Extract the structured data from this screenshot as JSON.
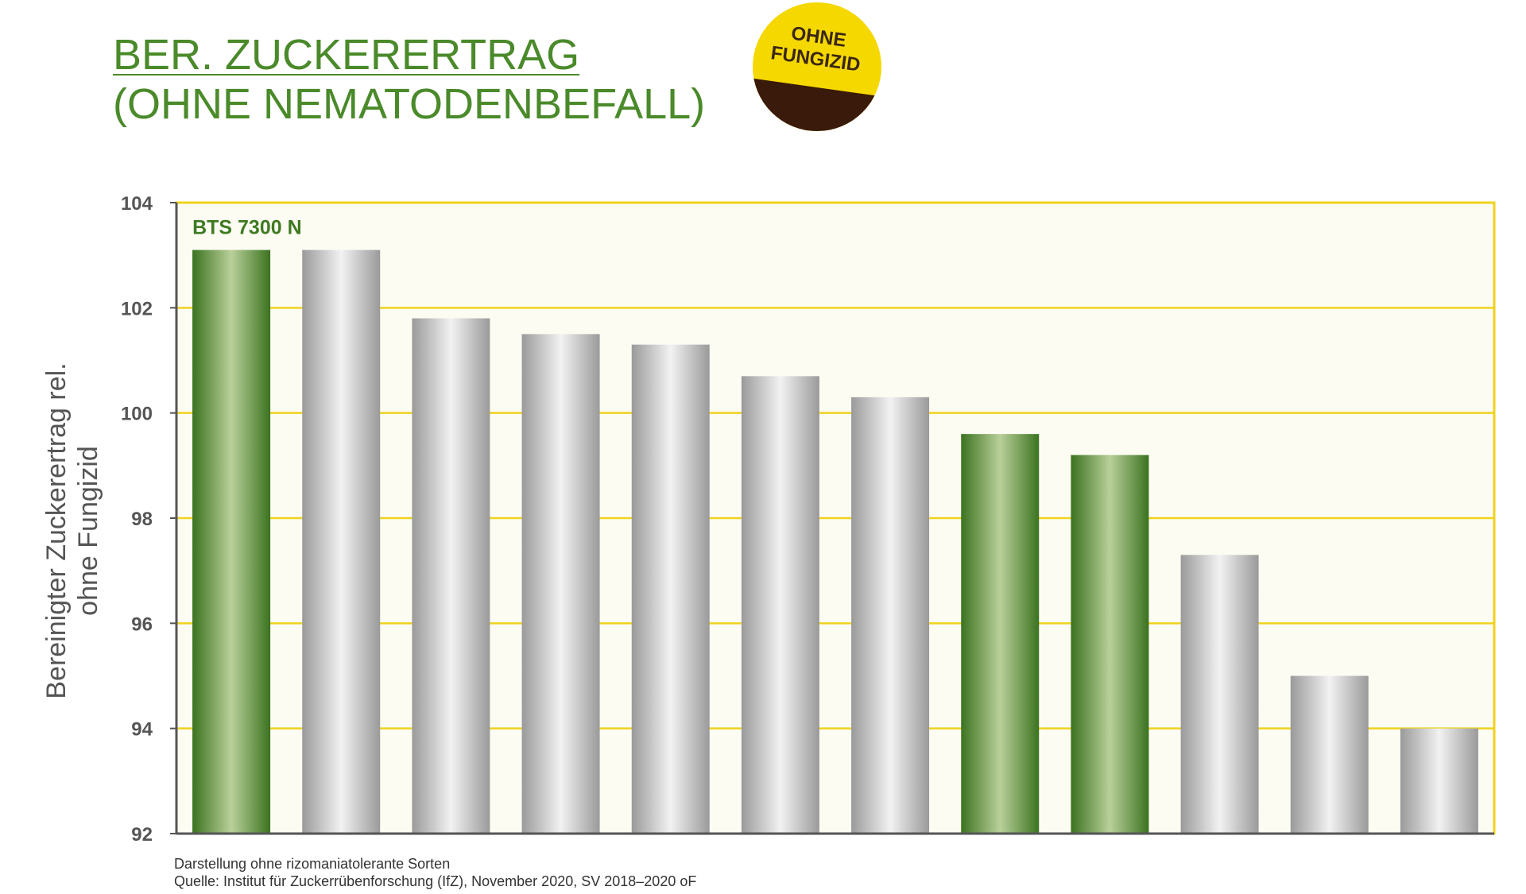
{
  "title": {
    "line1": "BER. ZUCKERERTRAG",
    "line2": "(OHNE NEMATODENBEFALL)"
  },
  "badge": {
    "line1": "OHNE",
    "line2": "FUNGIZID"
  },
  "chart_data": {
    "type": "bar",
    "ylabel": [
      "Bereinigter Zuckerertrag rel.",
      "ohne Fungizid"
    ],
    "ylim": [
      92,
      104
    ],
    "yticks": [
      92,
      94,
      96,
      98,
      100,
      102,
      104
    ],
    "grid": true,
    "values": [
      103.1,
      103.1,
      101.8,
      101.5,
      101.3,
      100.7,
      100.3,
      99.6,
      99.2,
      97.3,
      95.0,
      94.0
    ],
    "highlight": [
      true,
      false,
      false,
      false,
      false,
      false,
      false,
      true,
      true,
      false,
      false,
      false
    ],
    "annotation": "BTS 7300 N",
    "colors": {
      "highlight": "#3f7a22",
      "other": "#a8a8a8",
      "plot_background": "#fdfcf3",
      "gridline": "#f0d21e"
    }
  },
  "footnote": {
    "line1": "Darstellung ohne rizomaniatolerante Sorten",
    "line2": "Quelle: Institut für Zuckerrübenforschung (IfZ), November 2020, SV 2018–2020 oF"
  }
}
